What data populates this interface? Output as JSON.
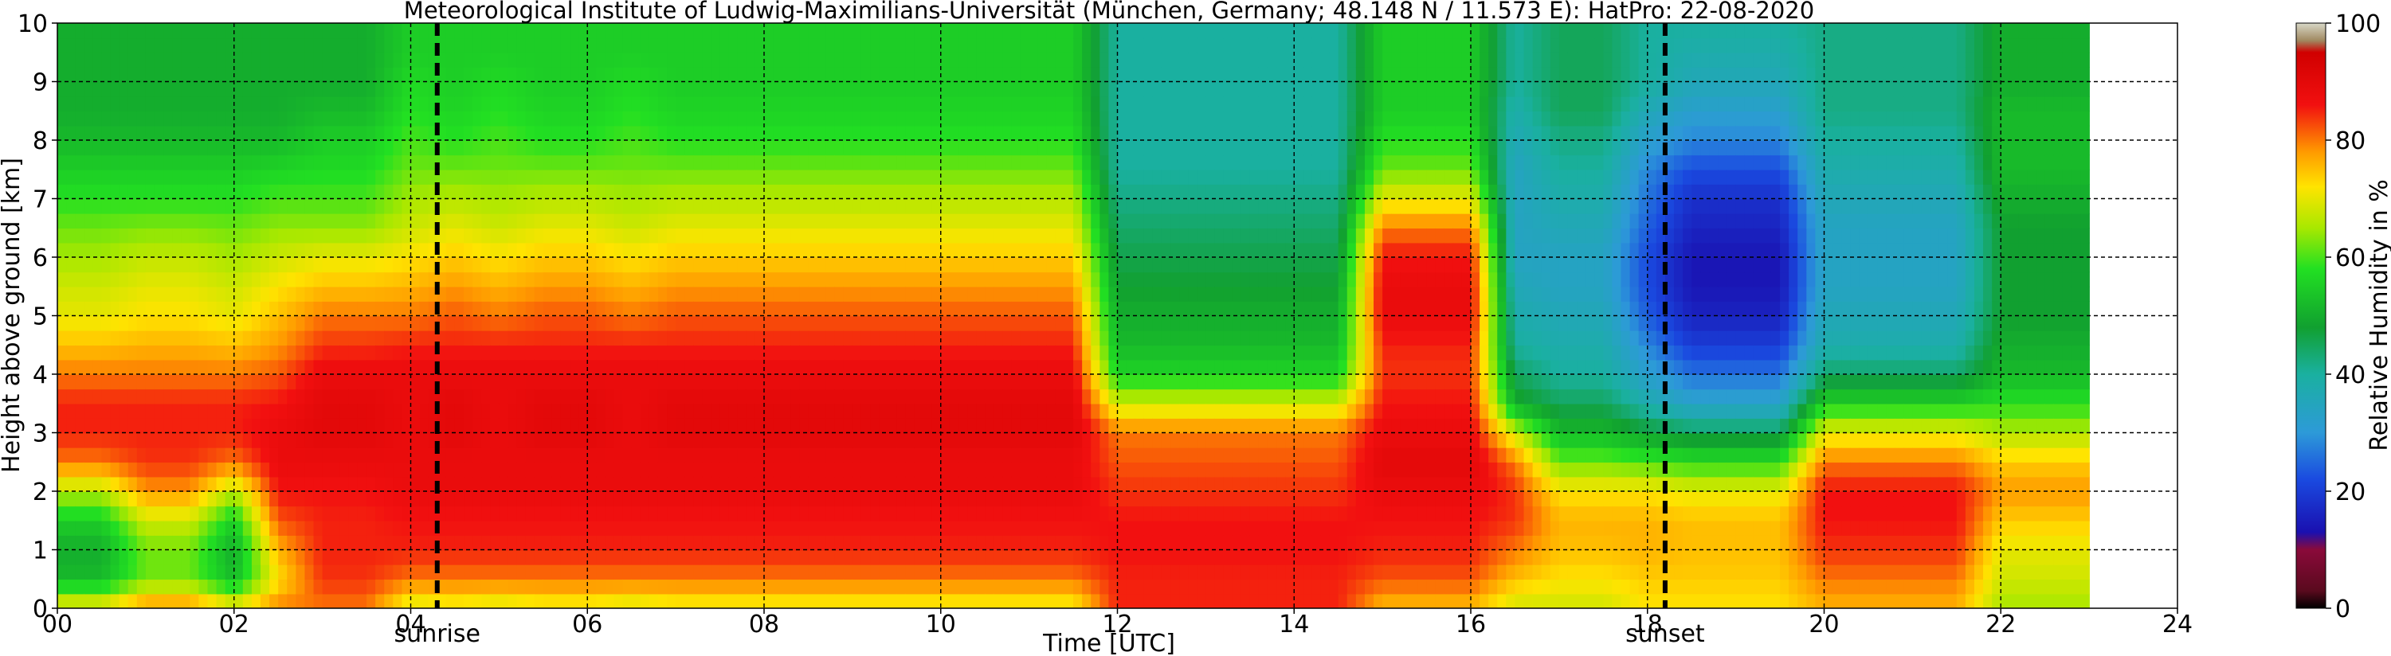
{
  "chart_data": {
    "type": "heatmap",
    "title": "Meteorological Institute of Ludwig-Maximilians-Universität (München, Germany; 48.148 N / 11.573 E):    HatPro: 22-08-2020",
    "xlabel": "Time [UTC]",
    "ylabel": "Height above ground [km]",
    "colorbar_label": "Relative Humidity in %",
    "xlim": [
      0,
      24
    ],
    "ylim": [
      0,
      10
    ],
    "clim": [
      0,
      100
    ],
    "x_ticks": [
      0,
      2,
      4,
      6,
      8,
      10,
      12,
      14,
      16,
      18,
      20,
      22,
      24
    ],
    "x_tick_labels": [
      "00",
      "02",
      "04",
      "06",
      "08",
      "10",
      "12",
      "14",
      "16",
      "18",
      "20",
      "22",
      "24"
    ],
    "y_ticks": [
      0,
      1,
      2,
      3,
      4,
      5,
      6,
      7,
      8,
      9,
      10
    ],
    "y_tick_labels": [
      "0",
      "1",
      "2",
      "3",
      "4",
      "5",
      "6",
      "7",
      "8",
      "9",
      "10"
    ],
    "colorbar_ticks": [
      0,
      20,
      40,
      60,
      80,
      100
    ],
    "colorbar_tick_labels": [
      "0",
      "20",
      "40",
      "60",
      "80",
      "100"
    ],
    "grid": true,
    "data_end_time": 23.0,
    "markers": [
      {
        "label": "sunrise",
        "time": 4.3
      },
      {
        "label": "sunset",
        "time": 18.2
      }
    ],
    "height_levels_km": [
      0.0,
      0.5,
      1.0,
      1.5,
      2.0,
      2.5,
      3.0,
      3.5,
      4.0,
      4.5,
      5.0,
      5.5,
      6.0,
      6.5,
      7.0,
      7.5,
      8.0,
      8.5,
      9.0,
      9.5,
      10.0
    ],
    "time_points_utc": [
      0.0,
      0.5,
      1.0,
      1.5,
      2.0,
      2.5,
      3.0,
      3.5,
      4.0,
      4.5,
      5.0,
      5.5,
      6.0,
      6.5,
      7.0,
      7.5,
      8.0,
      8.5,
      9.0,
      9.5,
      10.0,
      10.5,
      11.0,
      11.5,
      12.0,
      12.5,
      13.0,
      13.5,
      14.0,
      14.5,
      15.0,
      15.5,
      16.0,
      16.5,
      17.0,
      17.5,
      18.0,
      18.5,
      19.0,
      19.5,
      20.0,
      20.5,
      21.0,
      21.5,
      22.0,
      22.5,
      23.0
    ],
    "profile_types": {
      "A": [
        72,
        52,
        50,
        55,
        66,
        80,
        85,
        85,
        80,
        75,
        70,
        68,
        65,
        62,
        58,
        55,
        52,
        50,
        50,
        50,
        50
      ],
      "B": [
        80,
        62,
        62,
        68,
        78,
        84,
        85,
        85,
        80,
        76,
        72,
        70,
        67,
        63,
        58,
        55,
        52,
        50,
        50,
        50,
        50
      ],
      "C": [
        80,
        72,
        76,
        82,
        86,
        88,
        88,
        86,
        82,
        78,
        75,
        72,
        68,
        64,
        60,
        56,
        52,
        50,
        50,
        50,
        50
      ],
      "D": [
        80,
        84,
        85,
        85,
        86,
        88,
        90,
        90,
        88,
        84,
        80,
        75,
        70,
        64,
        60,
        57,
        55,
        52,
        50,
        50,
        50
      ],
      "E": [
        68,
        80,
        85,
        86,
        88,
        88,
        88,
        88,
        88,
        85,
        80,
        76,
        72,
        68,
        65,
        62,
        60,
        58,
        57,
        55,
        55
      ],
      "F": [
        70,
        80,
        85,
        86,
        88,
        88,
        90,
        90,
        88,
        85,
        82,
        78,
        74,
        70,
        66,
        62,
        58,
        56,
        55,
        55,
        55
      ],
      "G": [
        85,
        85,
        86,
        86,
        84,
        82,
        80,
        68,
        56,
        52,
        50,
        48,
        46,
        44,
        42,
        40,
        40,
        40,
        40,
        40,
        40
      ],
      "H": [
        75,
        82,
        85,
        86,
        88,
        90,
        88,
        86,
        84,
        85,
        88,
        88,
        86,
        80,
        70,
        62,
        58,
        55,
        55,
        55,
        55
      ],
      "I": [
        68,
        75,
        80,
        84,
        84,
        80,
        68,
        50,
        45,
        40,
        38,
        36,
        34,
        34,
        34,
        34,
        36,
        38,
        40,
        40,
        40
      ],
      "J": [
        68,
        72,
        75,
        76,
        72,
        62,
        52,
        45,
        40,
        38,
        36,
        34,
        34,
        36,
        38,
        40,
        42,
        45,
        45,
        45,
        45
      ],
      "K": [
        72,
        74,
        76,
        76,
        72,
        60,
        48,
        38,
        32,
        28,
        24,
        22,
        22,
        24,
        26,
        28,
        32,
        36,
        40,
        40,
        40
      ],
      "L": [
        72,
        74,
        75,
        75,
        70,
        58,
        45,
        33,
        26,
        20,
        16,
        14,
        14,
        16,
        18,
        22,
        28,
        32,
        36,
        38,
        40
      ],
      "M": [
        76,
        80,
        84,
        86,
        86,
        80,
        70,
        56,
        44,
        38,
        36,
        34,
        34,
        34,
        36,
        38,
        40,
        42,
        42,
        42,
        42
      ],
      "N": [
        65,
        68,
        70,
        74,
        78,
        74,
        66,
        58,
        52,
        50,
        48,
        48,
        48,
        48,
        50,
        52,
        52,
        52,
        50,
        50,
        50
      ]
    },
    "columns_profile": [
      "A",
      "A",
      "B",
      "B",
      "A",
      "C",
      "D",
      "D",
      "E",
      "F",
      "E",
      "F",
      "F",
      "E",
      "F",
      "F",
      "F",
      "F",
      "F",
      "F",
      "F",
      "F",
      "F",
      "F",
      "G",
      "G",
      "G",
      "G",
      "G",
      "G",
      "H",
      "H",
      "H",
      "I",
      "J",
      "J",
      "K",
      "L",
      "L",
      "L",
      "M",
      "M",
      "M",
      "M",
      "N",
      "N",
      "N"
    ]
  }
}
